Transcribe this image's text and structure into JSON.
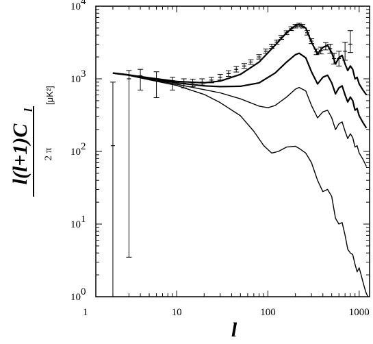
{
  "chart_data": {
    "type": "line",
    "xscale": "log",
    "yscale": "log",
    "xlim": [
      1.3,
      1300
    ],
    "ylim": [
      1,
      10000
    ],
    "xticks": [
      1,
      10,
      100,
      1000
    ],
    "xtick_labels": [
      "1",
      "10",
      "100",
      "1000"
    ],
    "yticks": [
      1,
      10,
      100,
      1000,
      10000
    ],
    "ytick_labels": [
      {
        "base": "10",
        "exp": "0"
      },
      {
        "base": "10",
        "exp": "1"
      },
      {
        "base": "10",
        "exp": "2"
      },
      {
        "base": "10",
        "exp": "3"
      },
      {
        "base": "10",
        "exp": "4"
      }
    ],
    "xlabel": "l",
    "ylabel": {
      "numerator": "l(l+1)C",
      "subscript": "l",
      "denominator": "2 π",
      "unit": "[μK²]"
    },
    "grid": false,
    "legend": "none",
    "series": [
      {
        "x": [
          2,
          3,
          5,
          10,
          20,
          30,
          50,
          80,
          120,
          160,
          200,
          220,
          260,
          300,
          350,
          400,
          450,
          500,
          550,
          600,
          650,
          700,
          750,
          800,
          850,
          900,
          950,
          1000,
          1100,
          1200
        ],
        "y": [
          1200,
          1130,
          1030,
          920,
          880,
          930,
          1150,
          1700,
          2900,
          4300,
          5400,
          5600,
          5000,
          3200,
          2200,
          2700,
          2900,
          2300,
          1600,
          1950,
          2100,
          1600,
          1300,
          1500,
          1350,
          1000,
          1050,
          850,
          700,
          600
        ]
      },
      {
        "x": [
          2,
          3,
          5,
          10,
          20,
          30,
          50,
          80,
          120,
          160,
          200,
          220,
          260,
          300,
          350,
          400,
          450,
          500,
          550,
          600,
          650,
          700,
          750,
          800,
          850,
          900,
          950,
          1000,
          1100,
          1200
        ],
        "y": [
          1200,
          1130,
          1010,
          880,
          800,
          780,
          790,
          880,
          1200,
          1700,
          2150,
          2250,
          1950,
          1250,
          850,
          1050,
          1120,
          880,
          620,
          750,
          800,
          600,
          480,
          560,
          500,
          370,
          390,
          310,
          250,
          210
        ]
      },
      {
        "x": [
          2,
          3,
          5,
          10,
          20,
          30,
          50,
          80,
          100,
          120,
          160,
          200,
          220,
          260,
          300,
          350,
          400,
          450,
          500,
          550,
          600,
          650,
          700,
          750,
          800,
          850,
          900,
          950,
          1000,
          1100,
          1200
        ],
        "y": [
          1200,
          1120,
          990,
          840,
          710,
          640,
          530,
          420,
          400,
          430,
          560,
          720,
          760,
          680,
          430,
          290,
          350,
          370,
          290,
          200,
          240,
          255,
          190,
          150,
          175,
          155,
          115,
          120,
          95,
          78,
          62
        ]
      },
      {
        "x": [
          2,
          3,
          5,
          10,
          20,
          30,
          50,
          70,
          90,
          110,
          130,
          160,
          200,
          220,
          260,
          300,
          350,
          400,
          450,
          500,
          550,
          600,
          650,
          700,
          750,
          800,
          850,
          900,
          950,
          1000,
          1050,
          1100,
          1150,
          1200,
          1250
        ],
        "y": [
          1190,
          1110,
          970,
          810,
          610,
          470,
          310,
          190,
          120,
          95,
          100,
          115,
          118,
          110,
          95,
          70,
          40,
          28,
          30,
          24,
          12,
          10,
          10.5,
          7,
          4.5,
          4,
          3.8,
          2.8,
          2.2,
          2.5,
          2.0,
          1.6,
          1.3,
          1.1,
          1.0
        ]
      }
    ],
    "errorbars": [
      {
        "x": 2,
        "y": 120,
        "lo": 1.0,
        "hi": 900
      },
      {
        "x": 3,
        "y": 1000,
        "lo": 3.5,
        "hi": 1300
      },
      {
        "x": 4,
        "y": 1100,
        "lo": 700,
        "hi": 1350
      },
      {
        "x": 6,
        "y": 950,
        "lo": 550,
        "hi": 1250
      },
      {
        "x": 9,
        "y": 900,
        "lo": 700,
        "hi": 1050
      },
      {
        "x": 12,
        "y": 870,
        "lo": 750,
        "hi": 1000
      },
      {
        "x": 15,
        "y": 880,
        "lo": 780,
        "hi": 990
      },
      {
        "x": 19,
        "y": 900,
        "lo": 820,
        "hi": 1000
      },
      {
        "x": 24,
        "y": 960,
        "lo": 880,
        "hi": 1050
      },
      {
        "x": 30,
        "y": 1050,
        "lo": 960,
        "hi": 1150
      },
      {
        "x": 37,
        "y": 1180,
        "lo": 1080,
        "hi": 1290
      },
      {
        "x": 45,
        "y": 1350,
        "lo": 1240,
        "hi": 1480
      },
      {
        "x": 55,
        "y": 1500,
        "lo": 1400,
        "hi": 1620
      },
      {
        "x": 65,
        "y": 1700,
        "lo": 1580,
        "hi": 1830
      },
      {
        "x": 80,
        "y": 2000,
        "lo": 1870,
        "hi": 2150
      },
      {
        "x": 95,
        "y": 2400,
        "lo": 2250,
        "hi": 2570
      },
      {
        "x": 110,
        "y": 2800,
        "lo": 2620,
        "hi": 3000
      },
      {
        "x": 125,
        "y": 3200,
        "lo": 3000,
        "hi": 3420
      },
      {
        "x": 140,
        "y": 3700,
        "lo": 3480,
        "hi": 3950
      },
      {
        "x": 160,
        "y": 4300,
        "lo": 4050,
        "hi": 4580
      },
      {
        "x": 180,
        "y": 4900,
        "lo": 4620,
        "hi": 5200
      },
      {
        "x": 200,
        "y": 5300,
        "lo": 5000,
        "hi": 5620
      },
      {
        "x": 220,
        "y": 5500,
        "lo": 5200,
        "hi": 5820
      },
      {
        "x": 240,
        "y": 5300,
        "lo": 5000,
        "hi": 5620
      },
      {
        "x": 270,
        "y": 4300,
        "lo": 4000,
        "hi": 4600
      },
      {
        "x": 300,
        "y": 3300,
        "lo": 3050,
        "hi": 3560
      },
      {
        "x": 340,
        "y": 2350,
        "lo": 2150,
        "hi": 2570
      },
      {
        "x": 380,
        "y": 2450,
        "lo": 2200,
        "hi": 2720
      },
      {
        "x": 430,
        "y": 2800,
        "lo": 2500,
        "hi": 3150
      },
      {
        "x": 480,
        "y": 2600,
        "lo": 2250,
        "hi": 3000
      },
      {
        "x": 530,
        "y": 1900,
        "lo": 1600,
        "hi": 2250
      },
      {
        "x": 600,
        "y": 1900,
        "lo": 1500,
        "hi": 2400
      },
      {
        "x": 700,
        "y": 2400,
        "lo": 1800,
        "hi": 3200
      },
      {
        "x": 800,
        "y": 3000,
        "lo": 2300,
        "hi": 4600
      }
    ]
  }
}
